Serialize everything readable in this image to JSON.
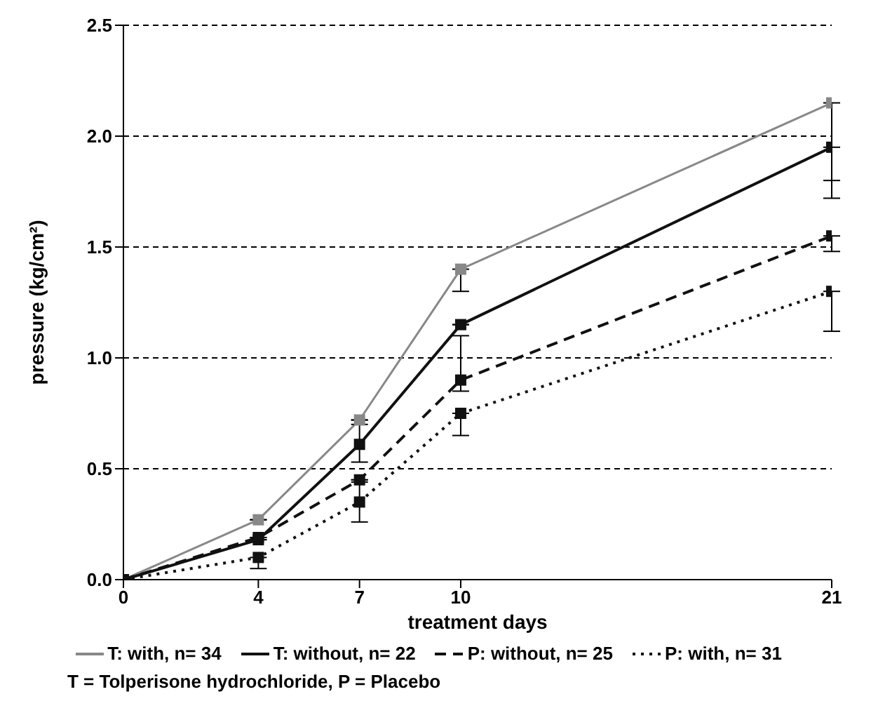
{
  "chart_data": {
    "type": "line",
    "xlabel": "treatment days",
    "ylabel": "pressure (kg/cm²)",
    "x": [
      0,
      4,
      7,
      10,
      21
    ],
    "xlim": [
      0,
      21
    ],
    "xticks": [
      0,
      4,
      7,
      10,
      21
    ],
    "ylim": [
      0,
      2.5
    ],
    "yticks": [
      {
        "value": 0,
        "label": "0.0"
      },
      0.5,
      {
        "value": 1,
        "label": "1.0"
      },
      1.5,
      {
        "value": 2,
        "label": "2.0"
      },
      2.5
    ],
    "grid": "y",
    "legend": "bottom",
    "marker": "square",
    "series": [
      {
        "name": "T: with, n= 34",
        "color": "#888888",
        "line_style": "solid",
        "values": [
          0,
          0.27,
          0.72,
          1.4,
          2.15
        ],
        "errors": [
          null,
          null,
          null,
          [
            1.3,
            1.4
          ],
          [
            1.8,
            2.15
          ]
        ]
      },
      {
        "name": "T: without, n= 22",
        "color": "#111111",
        "line_style": "solid",
        "values": [
          0,
          0.18,
          0.61,
          1.15,
          1.95
        ],
        "errors": [
          null,
          null,
          [
            0.53,
            0.7
          ],
          null,
          [
            1.72,
            1.95
          ]
        ]
      },
      {
        "name": "P: without, n= 25",
        "color": "#111111",
        "line_style": "dashed",
        "values": [
          0,
          0.19,
          0.45,
          0.9,
          1.55
        ],
        "errors": [
          null,
          null,
          null,
          [
            0.85,
            1.1
          ],
          [
            1.48,
            1.55
          ]
        ]
      },
      {
        "name": "P: with, n= 31",
        "color": "#111111",
        "line_style": "dotted",
        "values": [
          0,
          0.1,
          0.35,
          0.75,
          1.3
        ],
        "errors": [
          null,
          [
            0.05,
            0.1
          ],
          [
            0.26,
            0.44
          ],
          [
            0.65,
            0.75
          ],
          [
            1.12,
            1.3
          ]
        ]
      }
    ],
    "annotations": [
      "T = Tolperisone hydrochloride, P = Placebo"
    ]
  }
}
